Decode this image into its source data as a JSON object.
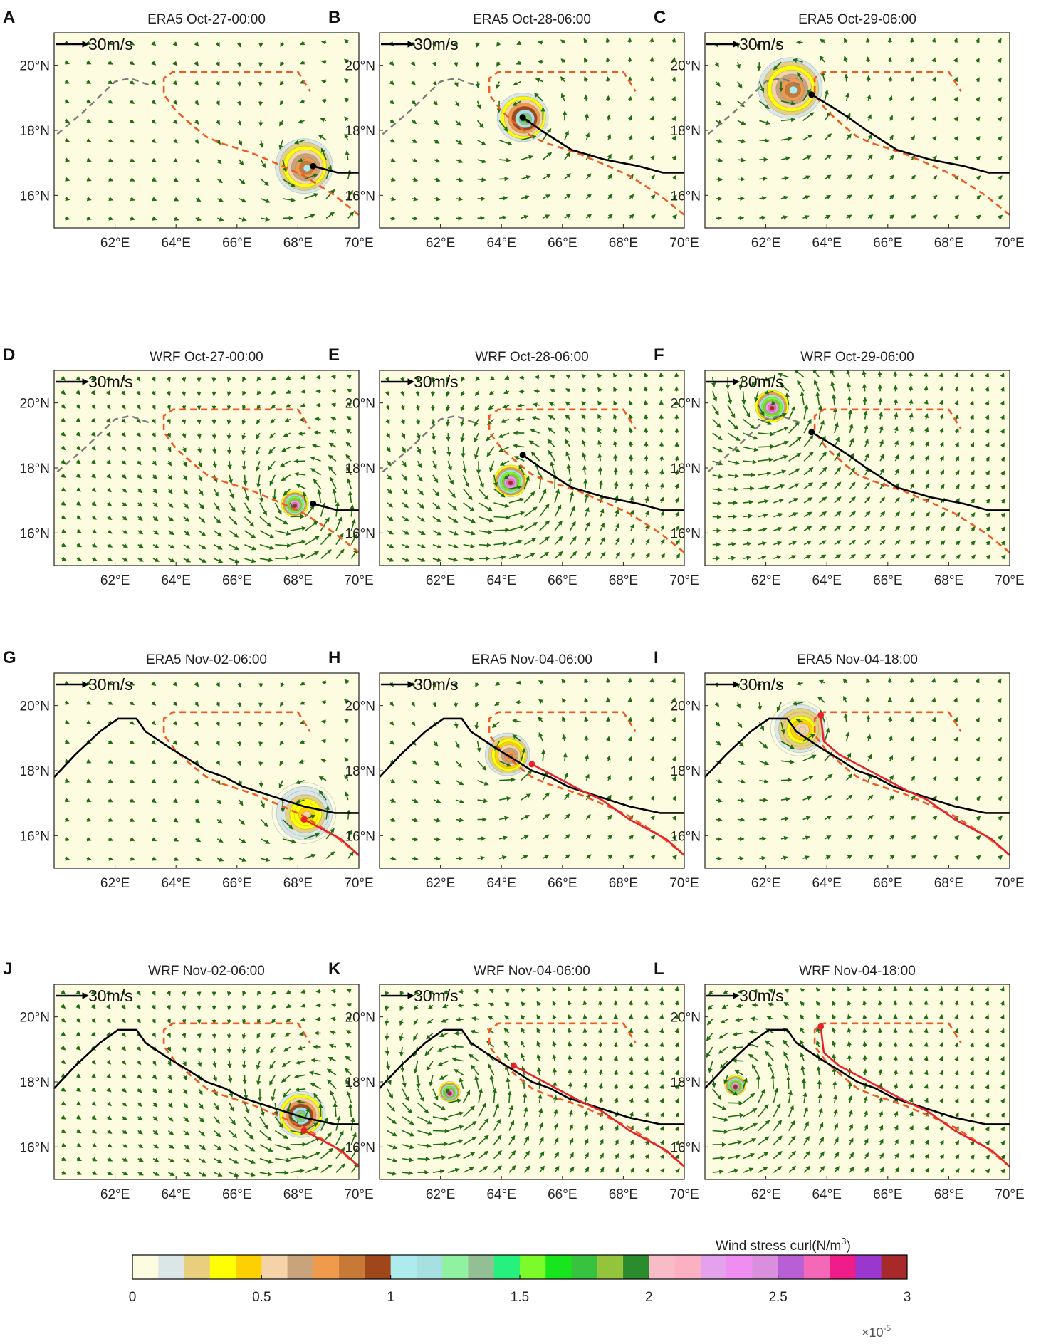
{
  "chart_data": {
    "type": "vector-field-map",
    "figure_title": "",
    "ranges": {
      "lon": [
        60,
        70
      ],
      "lat": [
        15,
        21
      ]
    },
    "x_ticks": [
      "62°E",
      "64°E",
      "66°E",
      "68°E",
      "70°E"
    ],
    "y_ticks": [
      "20°N",
      "18°N",
      "16°N"
    ],
    "x_tick_values": [
      62,
      64,
      66,
      68,
      70
    ],
    "y_tick_values": [
      20,
      18,
      16
    ],
    "reference_vector_label": "30m/s",
    "panels": [
      {
        "letter": "A",
        "title": "ERA5 Oct-27-00:00",
        "dataset": "ERA5",
        "center": [
          68.2,
          16.9
        ],
        "peak": 1.0,
        "radius": 0.9,
        "track": "oct",
        "upto": 68.2,
        "style": "ovals"
      },
      {
        "letter": "B",
        "title": "ERA5 Oct-28-06:00",
        "dataset": "ERA5",
        "center": [
          64.7,
          18.4
        ],
        "peak": 1.5,
        "radius": 0.8,
        "track": "oct",
        "upto": 64.7,
        "style": "ovals"
      },
      {
        "letter": "C",
        "title": "ERA5 Oct-29-06:00",
        "dataset": "ERA5",
        "center": [
          62.8,
          19.3
        ],
        "peak": 1.0,
        "radius": 1.0,
        "track": "oct",
        "upto": 63.2,
        "style": "ovals"
      },
      {
        "letter": "D",
        "title": "WRF Oct-27-00:00",
        "dataset": "WRF",
        "center": [
          67.9,
          16.9
        ],
        "peak": 3.0,
        "radius": 0.45,
        "track": "oct",
        "upto": 68.2,
        "style": "swirl"
      },
      {
        "letter": "E",
        "title": "WRF Oct-28-06:00",
        "dataset": "WRF",
        "center": [
          64.3,
          17.6
        ],
        "peak": 3.0,
        "radius": 0.55,
        "track": "oct",
        "upto": 64.7,
        "style": "swirl"
      },
      {
        "letter": "F",
        "title": "WRF Oct-29-06:00",
        "dataset": "WRF",
        "center": [
          62.2,
          19.9
        ],
        "peak": 3.0,
        "radius": 0.55,
        "track": "oct",
        "upto": 63.2,
        "style": "swirl"
      },
      {
        "letter": "G",
        "title": "ERA5 Nov-02-06:00",
        "dataset": "ERA5",
        "center": [
          68.2,
          16.7
        ],
        "peak": 0.5,
        "radius": 1.0,
        "track": "nov",
        "upto": 68.2,
        "style": "ovals"
      },
      {
        "letter": "H",
        "title": "ERA5 Nov-04-06:00",
        "dataset": "ERA5",
        "center": [
          64.2,
          18.5
        ],
        "peak": 0.8,
        "radius": 0.7,
        "track": "nov",
        "upto": 64.5,
        "style": "ovals"
      },
      {
        "letter": "I",
        "title": "ERA5 Nov-04-18:00",
        "dataset": "ERA5",
        "center": [
          63.1,
          19.3
        ],
        "peak": 0.6,
        "radius": 0.9,
        "track": "nov",
        "upto": 63.8,
        "style": "ovals"
      },
      {
        "letter": "J",
        "title": "WRF Nov-02-06:00",
        "dataset": "WRF",
        "center": [
          68.1,
          17.0
        ],
        "peak": 1.5,
        "radius": 0.8,
        "track": "nov",
        "upto": 68.2,
        "style": "swirl"
      },
      {
        "letter": "K",
        "title": "WRF Nov-04-06:00",
        "dataset": "WRF",
        "center": [
          62.3,
          17.7
        ],
        "peak": 3.0,
        "radius": 0.35,
        "track": "nov",
        "upto": 64.4,
        "style": "swirl"
      },
      {
        "letter": "L",
        "title": "WRF Nov-04-18:00",
        "dataset": "WRF",
        "center": [
          61.0,
          17.9
        ],
        "peak": 3.0,
        "radius": 0.35,
        "track": "nov",
        "upto": 63.8,
        "style": "swirl"
      }
    ],
    "tracks": {
      "oct_observed_black": [
        [
          70,
          16.7
        ],
        [
          69.3,
          16.7
        ],
        [
          68.5,
          16.9
        ],
        [
          67.4,
          17.1
        ],
        [
          66.3,
          17.4
        ],
        [
          65.3,
          18.0
        ],
        [
          64.7,
          18.4
        ],
        [
          64.2,
          18.7
        ],
        [
          63.5,
          19.1
        ],
        [
          63.1,
          19.4
        ]
      ],
      "oct_extension_gray": [
        [
          63.1,
          19.4
        ],
        [
          62.5,
          19.6
        ],
        [
          62.0,
          19.5
        ],
        [
          61.0,
          18.6
        ],
        [
          60.0,
          17.8
        ]
      ],
      "coastline_black": [
        [
          70,
          16.7
        ],
        [
          69.2,
          16.7
        ],
        [
          68.2,
          16.9
        ],
        [
          67.2,
          17.2
        ],
        [
          66.2,
          17.5
        ],
        [
          65.6,
          17.8
        ],
        [
          65.0,
          18.0
        ],
        [
          64.5,
          18.3
        ],
        [
          63.8,
          18.7
        ],
        [
          63.0,
          19.2
        ],
        [
          62.7,
          19.6
        ],
        [
          62.1,
          19.6
        ],
        [
          61.5,
          19.2
        ],
        [
          60.7,
          18.5
        ],
        [
          60.0,
          17.8
        ]
      ],
      "nov_red": [
        [
          70,
          15.4
        ],
        [
          69.4,
          15.9
        ],
        [
          68.8,
          16.2
        ],
        [
          68.2,
          16.5
        ],
        [
          67.3,
          17.1
        ],
        [
          66.6,
          17.4
        ],
        [
          65.8,
          17.8
        ],
        [
          65.0,
          18.2
        ],
        [
          64.4,
          18.5
        ],
        [
          63.9,
          18.9
        ],
        [
          63.7,
          19.4
        ],
        [
          63.8,
          19.7
        ]
      ],
      "red_dashed": [
        [
          70,
          15.4
        ],
        [
          69.2,
          16.0
        ],
        [
          68.2,
          16.6
        ],
        [
          67.5,
          16.9
        ],
        [
          66.5,
          17.3
        ],
        [
          65.5,
          17.6
        ],
        [
          65.0,
          17.8
        ],
        [
          64.6,
          18.1
        ],
        [
          64.0,
          18.6
        ],
        [
          63.6,
          19.1
        ],
        [
          63.6,
          19.6
        ],
        [
          63.9,
          19.8
        ],
        [
          68.0,
          19.8
        ],
        [
          68.4,
          19.2
        ]
      ]
    },
    "colorbar": {
      "label": "Wind stress curl(N/m3)",
      "label_text": "Wind stress curl(N/m",
      "label_sup": "3",
      "label_close": ")",
      "tick_labels": [
        "0",
        "0.5",
        "1",
        "1.5",
        "2",
        "2.5",
        "3"
      ],
      "tick_values": [
        0,
        0.5,
        1,
        1.5,
        2,
        2.5,
        3
      ],
      "scale_text": "×10",
      "scale_sup": "-5",
      "range": [
        0,
        3
      ],
      "colors": [
        "#fdfbe0",
        "#dbe7e6",
        "#e8cf7e",
        "#ffff00",
        "#ffd000",
        "#f3d3a7",
        "#c8a37c",
        "#ef9a4c",
        "#c87936",
        "#a0461b",
        "#aeebec",
        "#a6e0e0",
        "#90f2a0",
        "#92c094",
        "#28f07f",
        "#7cfa2a",
        "#18e61c",
        "#37c23f",
        "#94c43b",
        "#2a8c2d",
        "#f8bcc9",
        "#fbb1c2",
        "#e4a1ec",
        "#ef8df0",
        "#d98fdc",
        "#b85fd6",
        "#f567b7",
        "#ef1d89",
        "#9a37cf",
        "#a82929"
      ]
    },
    "colors": {
      "background": "#fdfbe0",
      "arrow": "#1f6e14",
      "track_black": "#000000",
      "track_gray": "#7b7b7b",
      "track_red": "#e8212a",
      "dashed_orange": "#f05a22"
    }
  }
}
